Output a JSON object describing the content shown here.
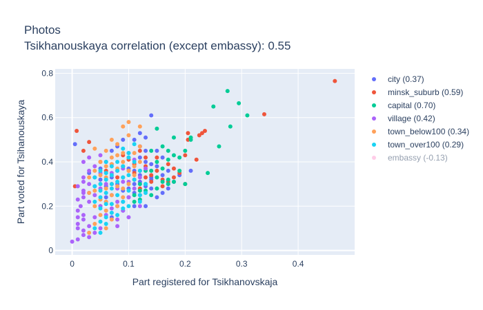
{
  "chart_data": {
    "type": "scatter",
    "title": "Photos",
    "subtitle": "Tsikhanouskaya correlation (except embassy): 0.55",
    "xlabel": "Part registered for Tsikhanovskaja",
    "ylabel": "Part voted for Tsihanouskaya",
    "xlim": [
      -0.03,
      0.5
    ],
    "ylim": [
      -0.02,
      0.82
    ],
    "xticks": [
      "0",
      "0.1",
      "0.2",
      "0.3",
      "0.4"
    ],
    "yticks": [
      "0",
      "0.2",
      "0.4",
      "0.6",
      "0.8"
    ],
    "grid": true,
    "legend_position": "right",
    "series": [
      {
        "name": "city (0.37)",
        "color": "#636efa",
        "visible": true,
        "points": [
          [
            0.005,
            0.48
          ],
          [
            0.07,
            0.39
          ],
          [
            0.09,
            0.33
          ],
          [
            0.1,
            0.42
          ],
          [
            0.11,
            0.5
          ],
          [
            0.12,
            0.53
          ],
          [
            0.12,
            0.47
          ],
          [
            0.14,
            0.61
          ],
          [
            0.13,
            0.45
          ],
          [
            0.11,
            0.36
          ],
          [
            0.09,
            0.27
          ],
          [
            0.08,
            0.2
          ],
          [
            0.06,
            0.24
          ],
          [
            0.05,
            0.32
          ],
          [
            0.15,
            0.38
          ],
          [
            0.16,
            0.42
          ],
          [
            0.17,
            0.36
          ],
          [
            0.14,
            0.33
          ],
          [
            0.13,
            0.29
          ],
          [
            0.12,
            0.25
          ],
          [
            0.1,
            0.24
          ],
          [
            0.08,
            0.36
          ],
          [
            0.07,
            0.45
          ],
          [
            0.09,
            0.5
          ],
          [
            0.11,
            0.3
          ],
          [
            0.13,
            0.4
          ],
          [
            0.15,
            0.45
          ],
          [
            0.16,
            0.34
          ],
          [
            0.12,
            0.31
          ],
          [
            0.1,
            0.37
          ],
          [
            0.06,
            0.4
          ],
          [
            0.04,
            0.29
          ],
          [
            0.03,
            0.35
          ],
          [
            0.05,
            0.2
          ],
          [
            0.07,
            0.15
          ],
          [
            0.09,
            0.22
          ],
          [
            0.11,
            0.26
          ],
          [
            0.14,
            0.28
          ],
          [
            0.18,
            0.31
          ],
          [
            0.19,
            0.34
          ],
          [
            0.17,
            0.28
          ],
          [
            0.15,
            0.24
          ],
          [
            0.13,
            0.2
          ],
          [
            0.12,
            0.36
          ],
          [
            0.1,
            0.44
          ],
          [
            0.08,
            0.47
          ],
          [
            0.06,
            0.29
          ],
          [
            0.14,
            0.39
          ],
          [
            0.16,
            0.26
          ],
          [
            0.21,
            0.36
          ],
          [
            0.13,
            0.51
          ],
          [
            0.12,
            0.42
          ],
          [
            0.09,
            0.18
          ],
          [
            0.11,
            0.2
          ],
          [
            0.07,
            0.33
          ],
          [
            0.05,
            0.37
          ],
          [
            0.08,
            0.3
          ],
          [
            0.1,
            0.28
          ],
          [
            0.12,
            0.34
          ],
          [
            0.14,
            0.32
          ]
        ]
      },
      {
        "name": "minsk_suburb (0.59)",
        "color": "#ef553b",
        "visible": true,
        "points": [
          [
            0.465,
            0.765
          ],
          [
            0.34,
            0.615
          ],
          [
            0.235,
            0.54
          ],
          [
            0.23,
            0.53
          ],
          [
            0.225,
            0.52
          ],
          [
            0.205,
            0.53
          ],
          [
            0.205,
            0.5
          ],
          [
            0.22,
            0.41
          ],
          [
            0.005,
            0.29
          ],
          [
            0.008,
            0.54
          ],
          [
            0.03,
            0.49
          ],
          [
            0.02,
            0.45
          ],
          [
            0.18,
            0.37
          ],
          [
            0.17,
            0.39
          ],
          [
            0.15,
            0.42
          ],
          [
            0.13,
            0.38
          ],
          [
            0.12,
            0.45
          ],
          [
            0.11,
            0.35
          ],
          [
            0.1,
            0.41
          ],
          [
            0.09,
            0.38
          ],
          [
            0.08,
            0.33
          ],
          [
            0.07,
            0.3
          ],
          [
            0.12,
            0.28
          ],
          [
            0.14,
            0.31
          ],
          [
            0.16,
            0.32
          ],
          [
            0.19,
            0.35
          ],
          [
            0.2,
            0.3
          ],
          [
            0.2,
            0.43
          ],
          [
            0.15,
            0.36
          ],
          [
            0.13,
            0.33
          ],
          [
            0.11,
            0.32
          ],
          [
            0.1,
            0.36
          ],
          [
            0.14,
            0.34
          ],
          [
            0.18,
            0.33
          ],
          [
            0.05,
            0.4
          ],
          [
            0.06,
            0.36
          ],
          [
            0.09,
            0.43
          ],
          [
            0.11,
            0.39
          ],
          [
            0.13,
            0.42
          ],
          [
            0.16,
            0.29
          ],
          [
            0.17,
            0.31
          ]
        ]
      },
      {
        "name": "capital (0.70)",
        "color": "#00cc96",
        "visible": true,
        "points": [
          [
            0.275,
            0.72
          ],
          [
            0.295,
            0.665
          ],
          [
            0.31,
            0.61
          ],
          [
            0.25,
            0.65
          ],
          [
            0.28,
            0.56
          ],
          [
            0.26,
            0.47
          ],
          [
            0.24,
            0.35
          ],
          [
            0.21,
            0.51
          ],
          [
            0.21,
            0.5
          ],
          [
            0.18,
            0.51
          ],
          [
            0.17,
            0.45
          ],
          [
            0.16,
            0.47
          ],
          [
            0.15,
            0.55
          ],
          [
            0.2,
            0.45
          ],
          [
            0.19,
            0.42
          ],
          [
            0.18,
            0.43
          ],
          [
            0.17,
            0.41
          ],
          [
            0.15,
            0.4
          ],
          [
            0.14,
            0.45
          ],
          [
            0.16,
            0.37
          ],
          [
            0.15,
            0.33
          ],
          [
            0.13,
            0.3
          ],
          [
            0.12,
            0.27
          ],
          [
            0.11,
            0.25
          ],
          [
            0.14,
            0.25
          ],
          [
            0.15,
            0.28
          ],
          [
            0.17,
            0.32
          ],
          [
            0.18,
            0.31
          ],
          [
            0.19,
            0.36
          ],
          [
            0.2,
            0.3
          ],
          [
            0.13,
            0.36
          ],
          [
            0.12,
            0.23
          ],
          [
            0.11,
            0.22
          ],
          [
            0.14,
            0.36
          ],
          [
            0.16,
            0.31
          ],
          [
            0.17,
            0.3
          ],
          [
            0.12,
            0.3
          ],
          [
            0.13,
            0.27
          ]
        ]
      },
      {
        "name": "village (0.42)",
        "color": "#ab63fa",
        "visible": true,
        "points": [
          [
            0.0,
            0.04
          ],
          [
            0.01,
            0.05
          ],
          [
            0.02,
            0.09
          ],
          [
            0.01,
            0.12
          ],
          [
            0.02,
            0.16
          ],
          [
            0.015,
            0.2
          ],
          [
            0.01,
            0.23
          ],
          [
            0.02,
            0.26
          ],
          [
            0.01,
            0.29
          ],
          [
            0.03,
            0.3
          ],
          [
            0.02,
            0.33
          ],
          [
            0.03,
            0.36
          ],
          [
            0.02,
            0.4
          ],
          [
            0.03,
            0.42
          ],
          [
            0.01,
            0.18
          ],
          [
            0.02,
            0.14
          ],
          [
            0.03,
            0.11
          ],
          [
            0.04,
            0.08
          ],
          [
            0.05,
            0.1
          ],
          [
            0.04,
            0.15
          ],
          [
            0.05,
            0.2
          ],
          [
            0.04,
            0.25
          ],
          [
            0.05,
            0.28
          ],
          [
            0.06,
            0.22
          ],
          [
            0.07,
            0.25
          ],
          [
            0.06,
            0.3
          ],
          [
            0.07,
            0.35
          ],
          [
            0.08,
            0.28
          ],
          [
            0.09,
            0.31
          ],
          [
            0.08,
            0.22
          ],
          [
            0.09,
            0.18
          ],
          [
            0.1,
            0.24
          ],
          [
            0.11,
            0.28
          ],
          [
            0.1,
            0.31
          ],
          [
            0.12,
            0.33
          ],
          [
            0.04,
            0.33
          ],
          [
            0.03,
            0.22
          ],
          [
            0.02,
            0.27
          ],
          [
            0.05,
            0.35
          ],
          [
            0.06,
            0.16
          ],
          [
            0.07,
            0.19
          ],
          [
            0.08,
            0.14
          ],
          [
            0.03,
            0.06
          ],
          [
            0.01,
            0.1
          ],
          [
            0.02,
            0.07
          ],
          [
            0.06,
            0.4
          ],
          [
            0.05,
            0.43
          ],
          [
            0.09,
            0.37
          ],
          [
            0.11,
            0.41
          ],
          [
            0.13,
            0.37
          ],
          [
            0.04,
            0.38
          ],
          [
            0.12,
            0.2
          ],
          [
            0.1,
            0.15
          ],
          [
            0.08,
            0.11
          ],
          [
            0.02,
            0.31
          ],
          [
            0.03,
            0.26
          ],
          [
            0.02,
            0.24
          ],
          [
            0.01,
            0.15
          ]
        ]
      },
      {
        "name": "town_below100 (0.34)",
        "color": "#ffa15a",
        "visible": true,
        "points": [
          [
            0.07,
            0.5
          ],
          [
            0.1,
            0.58
          ],
          [
            0.09,
            0.56
          ],
          [
            0.1,
            0.52
          ],
          [
            0.12,
            0.56
          ],
          [
            0.04,
            0.46
          ],
          [
            0.06,
            0.45
          ],
          [
            0.08,
            0.48
          ],
          [
            0.09,
            0.44
          ],
          [
            0.07,
            0.42
          ],
          [
            0.05,
            0.4
          ],
          [
            0.06,
            0.38
          ],
          [
            0.08,
            0.37
          ],
          [
            0.09,
            0.4
          ],
          [
            0.1,
            0.36
          ],
          [
            0.11,
            0.38
          ],
          [
            0.07,
            0.34
          ],
          [
            0.06,
            0.33
          ],
          [
            0.05,
            0.3
          ],
          [
            0.04,
            0.27
          ],
          [
            0.05,
            0.23
          ],
          [
            0.07,
            0.25
          ],
          [
            0.08,
            0.29
          ],
          [
            0.09,
            0.33
          ],
          [
            0.1,
            0.3
          ],
          [
            0.08,
            0.2
          ],
          [
            0.06,
            0.18
          ],
          [
            0.04,
            0.2
          ],
          [
            0.03,
            0.26
          ],
          [
            0.05,
            0.16
          ],
          [
            0.07,
            0.14
          ],
          [
            0.04,
            0.12
          ],
          [
            0.03,
            0.08
          ],
          [
            0.06,
            0.1
          ],
          [
            0.11,
            0.44
          ],
          [
            0.12,
            0.4
          ],
          [
            0.03,
            0.33
          ],
          [
            0.04,
            0.36
          ],
          [
            0.06,
            0.28
          ],
          [
            0.09,
            0.24
          ],
          [
            0.1,
            0.42
          ],
          [
            0.08,
            0.43
          ],
          [
            0.07,
            0.39
          ],
          [
            0.05,
            0.34
          ],
          [
            0.06,
            0.22
          ],
          [
            0.11,
            0.34
          ],
          [
            0.12,
            0.47
          ],
          [
            0.09,
            0.28
          ]
        ]
      },
      {
        "name": "town_over100 (0.29)",
        "color": "#19d3f3",
        "visible": true,
        "points": [
          [
            0.05,
            0.08
          ],
          [
            0.04,
            0.1
          ],
          [
            0.05,
            0.13
          ],
          [
            0.06,
            0.15
          ],
          [
            0.07,
            0.17
          ],
          [
            0.05,
            0.19
          ],
          [
            0.06,
            0.21
          ],
          [
            0.04,
            0.22
          ],
          [
            0.05,
            0.24
          ],
          [
            0.06,
            0.26
          ],
          [
            0.07,
            0.28
          ],
          [
            0.05,
            0.3
          ],
          [
            0.06,
            0.32
          ],
          [
            0.07,
            0.34
          ],
          [
            0.08,
            0.36
          ],
          [
            0.09,
            0.38
          ],
          [
            0.08,
            0.4
          ],
          [
            0.1,
            0.44
          ],
          [
            0.09,
            0.46
          ],
          [
            0.11,
            0.48
          ],
          [
            0.06,
            0.35
          ],
          [
            0.05,
            0.27
          ],
          [
            0.04,
            0.29
          ],
          [
            0.07,
            0.3
          ],
          [
            0.08,
            0.25
          ],
          [
            0.09,
            0.22
          ],
          [
            0.1,
            0.27
          ],
          [
            0.11,
            0.32
          ],
          [
            0.12,
            0.36
          ],
          [
            0.1,
            0.34
          ],
          [
            0.08,
            0.31
          ],
          [
            0.07,
            0.21
          ],
          [
            0.06,
            0.12
          ],
          [
            0.08,
            0.16
          ],
          [
            0.09,
            0.19
          ],
          [
            0.1,
            0.2
          ],
          [
            0.12,
            0.25
          ],
          [
            0.13,
            0.3
          ],
          [
            0.11,
            0.4
          ],
          [
            0.1,
            0.42
          ],
          [
            0.09,
            0.33
          ],
          [
            0.07,
            0.38
          ],
          [
            0.06,
            0.4
          ],
          [
            0.05,
            0.36
          ],
          [
            0.04,
            0.33
          ],
          [
            0.13,
            0.26
          ],
          [
            0.12,
            0.22
          ]
        ]
      },
      {
        "name": "embassy (-0.13)",
        "color": "#ff9bd1",
        "visible": false,
        "points": []
      }
    ]
  }
}
